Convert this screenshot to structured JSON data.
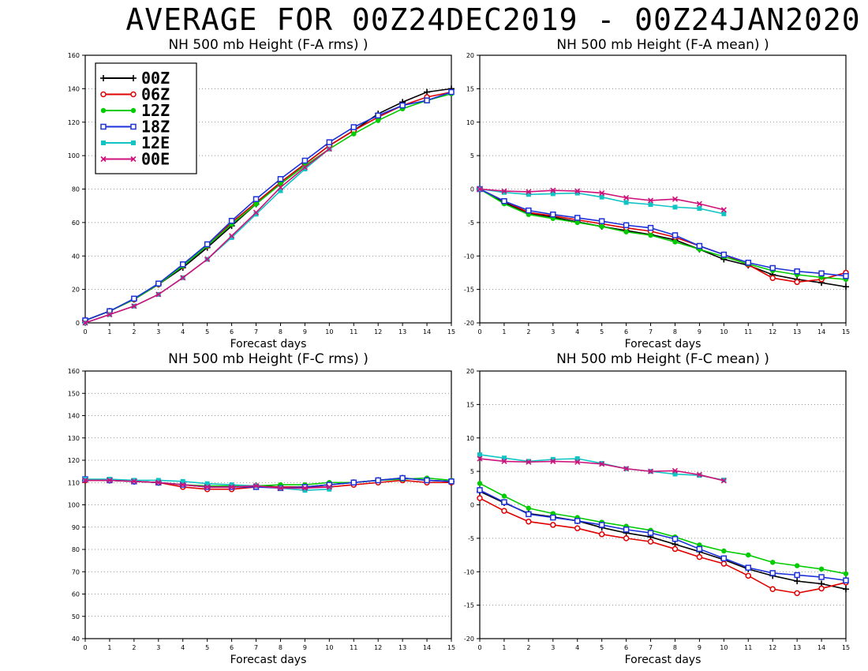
{
  "page": {
    "title": "AVERAGE FOR 00Z24DEC2019 - 00Z24JAN2020"
  },
  "legend": [
    {
      "label": "00Z",
      "color": "#000000",
      "marker": "plus"
    },
    {
      "label": "06Z",
      "color": "#e00000",
      "marker": "circle"
    },
    {
      "label": "12Z",
      "color": "#00cc00",
      "marker": "dot"
    },
    {
      "label": "18Z",
      "color": "#1c32d8",
      "marker": "square"
    },
    {
      "label": "12E",
      "color": "#10c4c4",
      "marker": "filled-square"
    },
    {
      "label": "00E",
      "color": "#d0107a",
      "marker": "x"
    }
  ],
  "chart_data": [
    {
      "type": "line",
      "title": "NH 500 mb Height (F-A rms) )",
      "xlabel": "Forecast days",
      "ylabel": "",
      "xlim": [
        0,
        15
      ],
      "ylim": [
        0,
        160
      ],
      "x_ticks": [
        0,
        1,
        2,
        3,
        4,
        5,
        6,
        7,
        8,
        9,
        10,
        11,
        12,
        13,
        14,
        15
      ],
      "y_ticks": [
        0,
        20,
        40,
        60,
        80,
        100,
        120,
        140,
        160
      ],
      "grid": "horizontal dotted",
      "legend_position": "top-left",
      "series": [
        {
          "name": "00Z",
          "x": [
            0,
            1,
            2,
            3,
            4,
            5,
            6,
            7,
            8,
            9,
            10,
            11,
            12,
            13,
            14,
            15
          ],
          "values": [
            1.5,
            7,
            14,
            23,
            33,
            45,
            58,
            71,
            84,
            95,
            106,
            115,
            125,
            132,
            138,
            140
          ]
        },
        {
          "name": "06Z",
          "x": [
            0,
            1,
            2,
            3,
            4,
            5,
            6,
            7,
            8,
            9,
            10,
            11,
            12,
            13,
            14,
            15
          ],
          "values": [
            1.5,
            7,
            14,
            23,
            34,
            46,
            60,
            72,
            84,
            95,
            106,
            115,
            123,
            130,
            135,
            138
          ]
        },
        {
          "name": "12Z",
          "x": [
            0,
            1,
            2,
            3,
            4,
            5,
            6,
            7,
            8,
            9,
            10,
            11,
            12,
            13,
            14,
            15
          ],
          "values": [
            1.5,
            7,
            14,
            23,
            34,
            46,
            59,
            71,
            83,
            94,
            104,
            113,
            121,
            128,
            133,
            137
          ]
        },
        {
          "name": "18Z",
          "x": [
            0,
            1,
            2,
            3,
            4,
            5,
            6,
            7,
            8,
            9,
            10,
            11,
            12,
            13,
            14,
            15
          ],
          "values": [
            1.5,
            7,
            14.5,
            23.5,
            35,
            47,
            61,
            74,
            86,
            97,
            108,
            117,
            124,
            130,
            133,
            138
          ]
        },
        {
          "name": "12E",
          "x": [
            0,
            1,
            2,
            3,
            4,
            5,
            6,
            7,
            8,
            9,
            10
          ],
          "values": [
            0,
            5,
            10,
            17,
            27,
            38,
            51,
            65,
            79,
            92,
            104
          ]
        },
        {
          "name": "00E",
          "x": [
            0,
            1,
            2,
            3,
            4,
            5,
            6,
            7,
            8,
            9,
            10
          ],
          "values": [
            0,
            5,
            10,
            17,
            27,
            38,
            52,
            66,
            81,
            93,
            104
          ]
        }
      ]
    },
    {
      "type": "line",
      "title": "NH 500 mb Height (F-A mean) )",
      "xlabel": "Forecast days",
      "ylabel": "",
      "xlim": [
        0,
        15
      ],
      "ylim": [
        -20,
        20
      ],
      "x_ticks": [
        0,
        1,
        2,
        3,
        4,
        5,
        6,
        7,
        8,
        9,
        10,
        11,
        12,
        13,
        14,
        15
      ],
      "y_ticks": [
        -20,
        -15,
        -10,
        -5,
        0,
        5,
        10,
        15,
        20
      ],
      "grid": "horizontal dotted",
      "series": [
        {
          "name": "00Z",
          "x": [
            0,
            1,
            2,
            3,
            4,
            5,
            6,
            7,
            8,
            9,
            10,
            11,
            12,
            13,
            14,
            15
          ],
          "values": [
            0,
            -2,
            -3.6,
            -4.2,
            -4.9,
            -5.6,
            -6.2,
            -6.8,
            -7.6,
            -9,
            -10.5,
            -11.4,
            -12.8,
            -13.5,
            -14,
            -14.6
          ]
        },
        {
          "name": "06Z",
          "x": [
            0,
            1,
            2,
            3,
            4,
            5,
            6,
            7,
            8,
            9,
            10,
            11,
            12,
            13,
            14,
            15
          ],
          "values": [
            0,
            -1.8,
            -3.5,
            -4,
            -4.6,
            -5.2,
            -5.8,
            -6.3,
            -7.2,
            -8.5,
            -9.8,
            -11.3,
            -13.3,
            -13.9,
            -13.5,
            -12.5
          ]
        },
        {
          "name": "12Z",
          "x": [
            0,
            1,
            2,
            3,
            4,
            5,
            6,
            7,
            8,
            9,
            10,
            11,
            12,
            13,
            14,
            15
          ],
          "values": [
            0,
            -2.2,
            -3.8,
            -4.4,
            -5,
            -5.6,
            -6.4,
            -6.9,
            -7.9,
            -9,
            -10.1,
            -11.2,
            -12.2,
            -12.8,
            -13.2,
            -13.5
          ]
        },
        {
          "name": "18Z",
          "x": [
            0,
            1,
            2,
            3,
            4,
            5,
            6,
            7,
            8,
            9,
            10,
            11,
            12,
            13,
            14,
            15
          ],
          "values": [
            0,
            -1.8,
            -3.2,
            -3.8,
            -4.3,
            -4.8,
            -5.4,
            -5.8,
            -6.9,
            -8.5,
            -9.8,
            -11,
            -11.8,
            -12.3,
            -12.6,
            -13
          ]
        },
        {
          "name": "12E",
          "x": [
            0,
            1,
            2,
            3,
            4,
            5,
            6,
            7,
            8,
            9,
            10
          ],
          "values": [
            0,
            -0.5,
            -0.8,
            -0.7,
            -0.6,
            -1.2,
            -2,
            -2.3,
            -2.7,
            -2.9,
            -3.7
          ]
        },
        {
          "name": "00E",
          "x": [
            0,
            1,
            2,
            3,
            4,
            5,
            6,
            7,
            8,
            9,
            10
          ],
          "values": [
            0,
            -0.3,
            -0.4,
            -0.2,
            -0.3,
            -0.6,
            -1.3,
            -1.7,
            -1.5,
            -2.2,
            -3.1
          ]
        }
      ]
    },
    {
      "type": "line",
      "title": "NH 500 mb Height (F-C rms) )",
      "xlabel": "Forecast days",
      "ylabel": "",
      "xlim": [
        0,
        15
      ],
      "ylim": [
        40,
        160
      ],
      "x_ticks": [
        0,
        1,
        2,
        3,
        4,
        5,
        6,
        7,
        8,
        9,
        10,
        11,
        12,
        13,
        14,
        15
      ],
      "y_ticks": [
        40,
        50,
        60,
        70,
        80,
        90,
        100,
        110,
        120,
        130,
        140,
        150,
        160
      ],
      "grid": "horizontal dotted",
      "series": [
        {
          "name": "00Z",
          "x": [
            0,
            1,
            2,
            3,
            4,
            5,
            6,
            7,
            8,
            9,
            10,
            11,
            12,
            13,
            14,
            15
          ],
          "values": [
            111,
            111,
            110.5,
            110,
            109,
            108,
            108,
            108.5,
            108,
            108,
            109,
            110,
            111,
            112,
            111,
            110.5
          ]
        },
        {
          "name": "06Z",
          "x": [
            0,
            1,
            2,
            3,
            4,
            5,
            6,
            7,
            8,
            9,
            10,
            11,
            12,
            13,
            14,
            15
          ],
          "values": [
            111,
            111,
            110.5,
            110,
            108,
            107,
            107,
            108,
            108,
            108,
            108,
            109,
            110,
            111,
            110,
            110
          ]
        },
        {
          "name": "12Z",
          "x": [
            0,
            1,
            2,
            3,
            4,
            5,
            6,
            7,
            8,
            9,
            10,
            11,
            12,
            13,
            14,
            15
          ],
          "values": [
            111.5,
            111,
            110.5,
            110,
            109,
            108.5,
            108.5,
            108.5,
            109,
            109,
            110,
            110,
            111,
            111.5,
            112,
            111
          ]
        },
        {
          "name": "18Z",
          "x": [
            0,
            1,
            2,
            3,
            4,
            5,
            6,
            7,
            8,
            9,
            10,
            11,
            12,
            13,
            14,
            15
          ],
          "values": [
            111.5,
            111,
            110.5,
            110,
            109,
            108,
            108,
            108,
            107.5,
            108,
            109,
            110,
            111,
            112,
            111,
            110.5
          ]
        },
        {
          "name": "12E",
          "x": [
            0,
            1,
            2,
            3,
            4,
            5,
            6,
            7,
            8,
            9,
            10
          ],
          "values": [
            111.5,
            111.5,
            111,
            111,
            110.5,
            109.5,
            109,
            108.5,
            107.5,
            106.5,
            107
          ]
        },
        {
          "name": "00E",
          "x": [
            0,
            1,
            2,
            3,
            4,
            5,
            6,
            7,
            8,
            9,
            10
          ],
          "values": [
            111,
            111,
            110.5,
            110,
            109,
            108,
            108,
            108.5,
            107.5,
            107.5,
            108
          ]
        }
      ]
    },
    {
      "type": "line",
      "title": "NH 500 mb Height (F-C mean) )",
      "xlabel": "Forecast days",
      "ylabel": "",
      "xlim": [
        0,
        15
      ],
      "ylim": [
        -20,
        20
      ],
      "x_ticks": [
        0,
        1,
        2,
        3,
        4,
        5,
        6,
        7,
        8,
        9,
        10,
        11,
        12,
        13,
        14,
        15
      ],
      "y_ticks": [
        -20,
        -15,
        -10,
        -5,
        0,
        5,
        10,
        15,
        20
      ],
      "grid": "horizontal dotted",
      "series": [
        {
          "name": "00Z",
          "x": [
            0,
            1,
            2,
            3,
            4,
            5,
            6,
            7,
            8,
            9,
            10,
            11,
            12,
            13,
            14,
            15
          ],
          "values": [
            2,
            0.3,
            -1.3,
            -1.8,
            -2.4,
            -3.4,
            -4.2,
            -4.8,
            -5.9,
            -7,
            -8.2,
            -9.6,
            -10.6,
            -11.4,
            -11.8,
            -12.6
          ]
        },
        {
          "name": "06Z",
          "x": [
            0,
            1,
            2,
            3,
            4,
            5,
            6,
            7,
            8,
            9,
            10,
            11,
            12,
            13,
            14,
            15
          ],
          "values": [
            1,
            -0.9,
            -2.5,
            -3,
            -3.5,
            -4.4,
            -5,
            -5.5,
            -6.6,
            -7.8,
            -8.8,
            -10.6,
            -12.6,
            -13.2,
            -12.5,
            -11.6
          ]
        },
        {
          "name": "12Z",
          "x": [
            0,
            1,
            2,
            3,
            4,
            5,
            6,
            7,
            8,
            9,
            10,
            11,
            12,
            13,
            14,
            15
          ],
          "values": [
            3.2,
            1.3,
            -0.5,
            -1.3,
            -1.9,
            -2.6,
            -3.2,
            -3.8,
            -4.8,
            -6,
            -6.9,
            -7.5,
            -8.6,
            -9.1,
            -9.6,
            -10.3
          ]
        },
        {
          "name": "18Z",
          "x": [
            0,
            1,
            2,
            3,
            4,
            5,
            6,
            7,
            8,
            9,
            10,
            11,
            12,
            13,
            14,
            15
          ],
          "values": [
            2.2,
            0.4,
            -1.4,
            -1.9,
            -2.4,
            -3,
            -3.7,
            -4.2,
            -5.1,
            -6.6,
            -8,
            -9.4,
            -10.2,
            -10.5,
            -10.8,
            -11.3
          ]
        },
        {
          "name": "12E",
          "x": [
            0,
            1,
            2,
            3,
            4,
            5,
            6,
            7,
            8,
            9,
            10
          ],
          "values": [
            7.5,
            7,
            6.5,
            6.8,
            6.9,
            6.2,
            5.4,
            5,
            4.6,
            4.4,
            3.7
          ]
        },
        {
          "name": "00E",
          "x": [
            0,
            1,
            2,
            3,
            4,
            5,
            6,
            7,
            8,
            9,
            10
          ],
          "values": [
            6.9,
            6.5,
            6.4,
            6.5,
            6.4,
            6.1,
            5.4,
            5,
            5.1,
            4.5,
            3.6
          ]
        }
      ]
    }
  ]
}
